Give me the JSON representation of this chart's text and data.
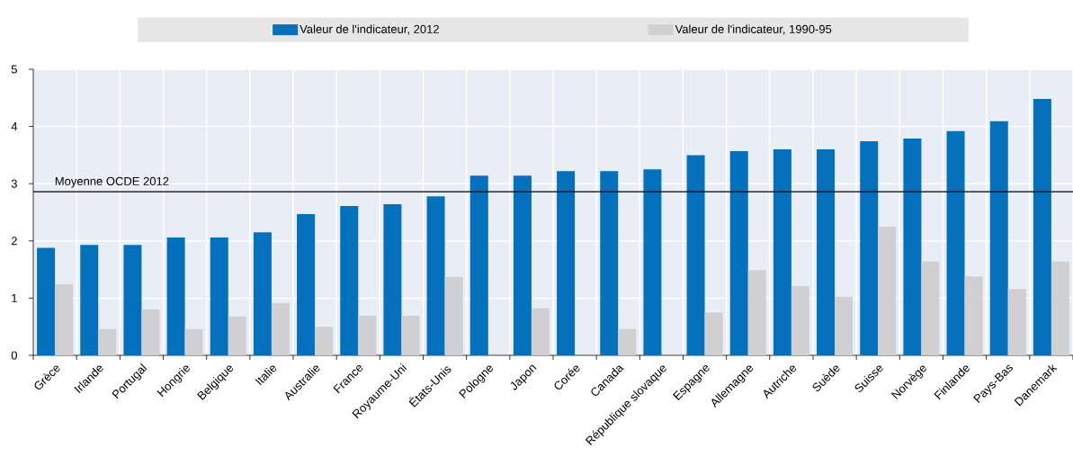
{
  "chart_data": {
    "type": "bar",
    "categories": [
      "Grèce",
      "Irlande",
      "Portugal",
      "Hongrie",
      "Belgique",
      "Italie",
      "Australie",
      "France",
      "Royaume-Uni",
      "États-Unis",
      "Pologne",
      "Japon",
      "Corée",
      "Canada",
      "République slovaque",
      "Espagne",
      "Allemagne",
      "Autriche",
      "Suède",
      "Suisse",
      "Norvège",
      "Finlande",
      "Pays-Bas",
      "Danemark"
    ],
    "series": [
      {
        "name": "Valeur de l'indicateur, 2012",
        "color": "#0570bb",
        "values": [
          1.88,
          1.93,
          1.93,
          2.06,
          2.06,
          2.15,
          2.47,
          2.61,
          2.64,
          2.78,
          3.14,
          3.14,
          3.22,
          3.22,
          3.25,
          3.5,
          3.57,
          3.6,
          3.6,
          3.74,
          3.79,
          3.92,
          4.09,
          4.48
        ]
      },
      {
        "name": "Valeur de l'indicateur, 1990-95",
        "color": "#d0d0d2",
        "values": [
          1.24,
          0.46,
          0.8,
          0.46,
          0.68,
          0.91,
          0.5,
          0.69,
          0.69,
          1.37,
          null,
          0.82,
          null,
          0.46,
          null,
          0.75,
          1.49,
          1.21,
          1.02,
          2.25,
          1.64,
          1.38,
          1.16,
          1.64
        ]
      }
    ],
    "ylim": [
      0,
      5
    ],
    "yticks": [
      0,
      1,
      2,
      3,
      4,
      5
    ],
    "grid": true,
    "legend": "top",
    "ref_lines": [
      {
        "axis": "y",
        "value": 2.86,
        "label": "Moyenne OCDE 2012",
        "color": "#000000"
      }
    ]
  }
}
